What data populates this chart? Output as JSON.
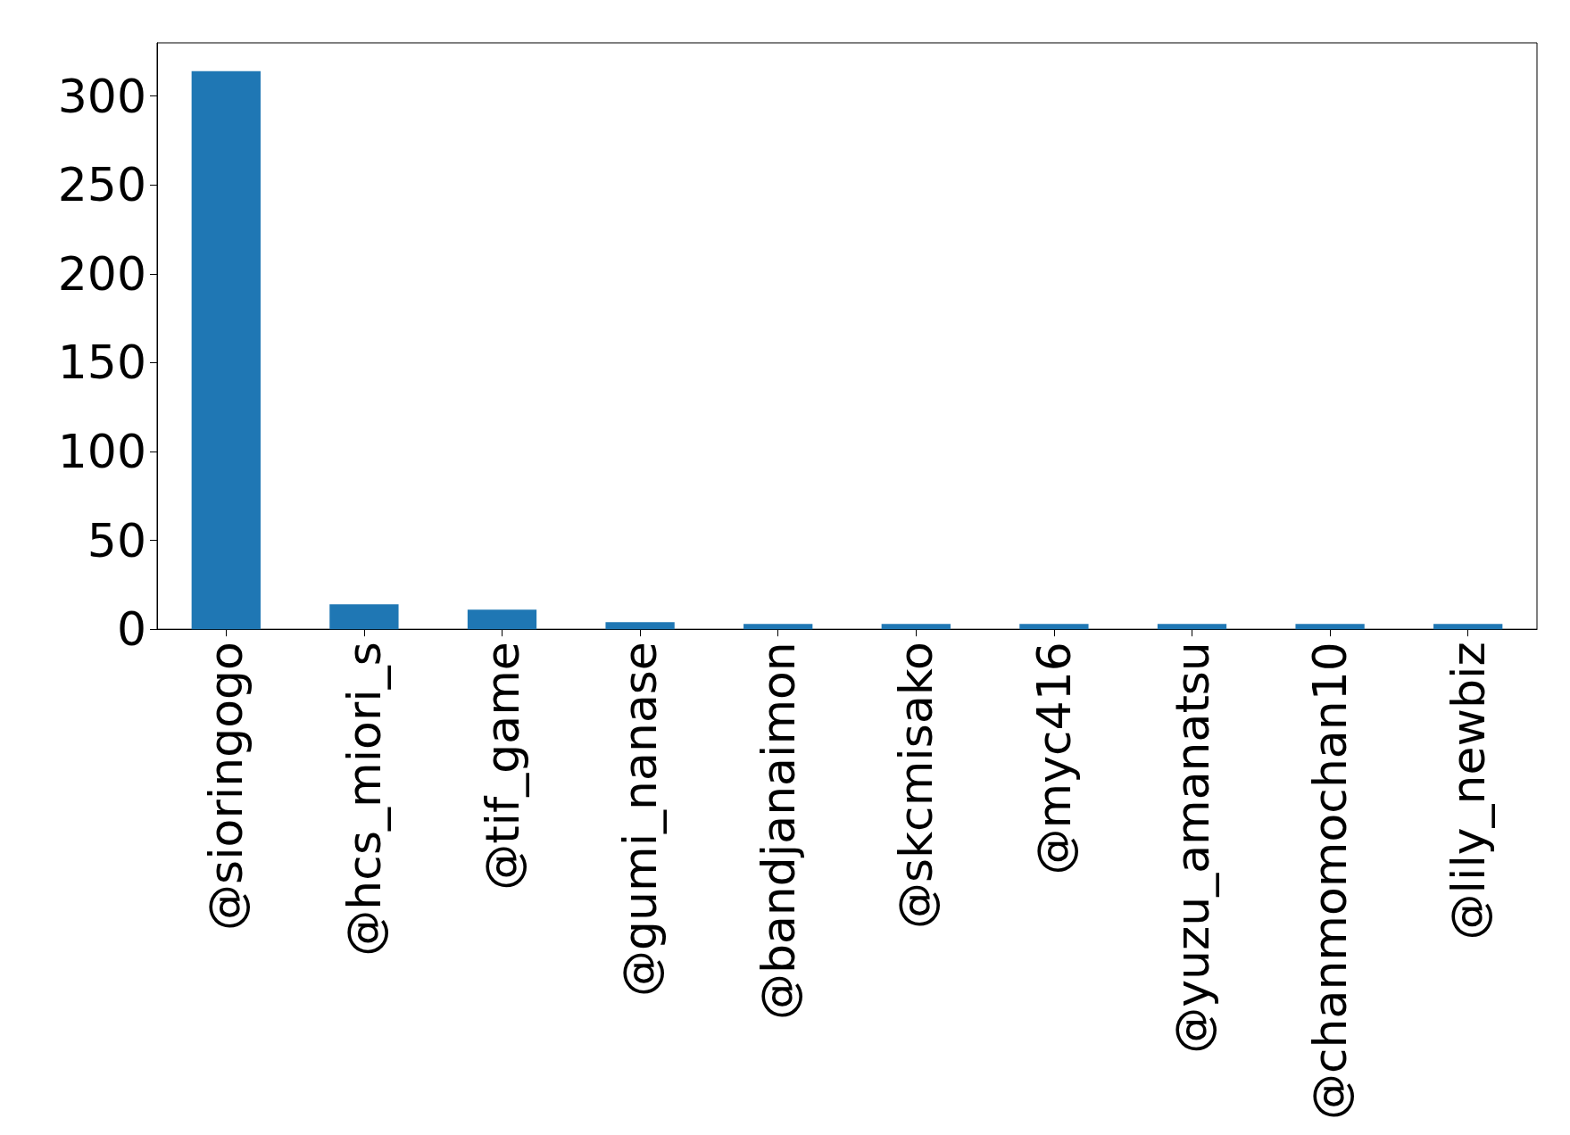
{
  "chart_data": {
    "type": "bar",
    "categories": [
      "@sioringogo",
      "@hcs_miori_s",
      "@tif_game",
      "@gumi_nanase",
      "@bandjanaimon",
      "@skcmisako",
      "@myc416",
      "@yuzu_amanatsu",
      "@chanmomochan10",
      "@lily_newbiz"
    ],
    "values": [
      314,
      14,
      11,
      4,
      3,
      3,
      3,
      3,
      3,
      3
    ],
    "color": "#1f77b4",
    "ylim": [
      0,
      330
    ],
    "yticks": [
      0,
      50,
      100,
      150,
      200,
      250,
      300
    ],
    "grid": false
  }
}
